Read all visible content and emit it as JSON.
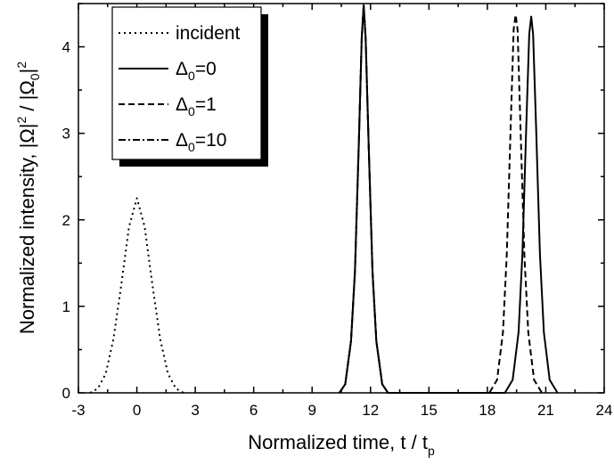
{
  "chart_data": {
    "type": "line",
    "xlabel": "Normalized time, t / t",
    "xlabel_sub": "p",
    "ylabel": "Normalized intensity, |Ω|",
    "ylabel_parts": [
      "Normalized intensity, |Ω|",
      "2",
      " / |Ω",
      "0",
      "|",
      "2"
    ],
    "xlim": [
      -3,
      24
    ],
    "ylim": [
      0,
      4.5
    ],
    "xticks": [
      -3,
      0,
      3,
      6,
      9,
      12,
      15,
      18,
      21,
      24
    ],
    "yticks": [
      0,
      1,
      2,
      3,
      4
    ],
    "grid": false,
    "legend_position": "top-left",
    "series": [
      {
        "name": "incident",
        "label_parts": [
          "incident"
        ],
        "style": "dotted",
        "x": [
          -2.4,
          -2.0,
          -1.6,
          -1.2,
          -0.8,
          -0.4,
          0,
          0.4,
          0.8,
          1.2,
          1.6,
          2.0,
          2.4
        ],
        "y": [
          0.0,
          0.05,
          0.22,
          0.62,
          1.25,
          1.92,
          2.25,
          1.92,
          1.25,
          0.62,
          0.22,
          0.05,
          0.0
        ]
      },
      {
        "name": "Δ0=0",
        "label_parts": [
          "Δ",
          "0",
          "=0"
        ],
        "style": "solid",
        "x": [
          10.4,
          10.7,
          11.0,
          11.2,
          11.4,
          11.55,
          11.65,
          11.75,
          11.9,
          12.1,
          12.3,
          12.6,
          12.9,
          18.9,
          19.3,
          19.6,
          19.8,
          20.0,
          20.15,
          20.25,
          20.35,
          20.5,
          20.7,
          20.9,
          21.2,
          21.6
        ],
        "y": [
          0.0,
          0.1,
          0.6,
          1.4,
          2.9,
          4.1,
          4.48,
          4.1,
          2.9,
          1.4,
          0.6,
          0.1,
          0.0,
          0.0,
          0.15,
          0.7,
          1.6,
          3.1,
          4.15,
          4.35,
          4.15,
          3.1,
          1.6,
          0.7,
          0.15,
          0.0
        ]
      },
      {
        "name": "Δ0=1",
        "label_parts": [
          "Δ",
          "0",
          "=1"
        ],
        "style": "dashed",
        "x": [
          10.4,
          10.7,
          11.0,
          11.2,
          11.4,
          11.55,
          11.65,
          11.75,
          11.9,
          12.1,
          12.3,
          12.6,
          12.9,
          18.1,
          18.5,
          18.8,
          19.0,
          19.2,
          19.35,
          19.45,
          19.55,
          19.7,
          19.9,
          20.1,
          20.4,
          20.8
        ],
        "y": [
          0.0,
          0.1,
          0.6,
          1.4,
          2.9,
          4.1,
          4.48,
          4.1,
          2.9,
          1.4,
          0.6,
          0.1,
          0.0,
          0.0,
          0.15,
          0.7,
          1.6,
          3.1,
          4.2,
          4.37,
          4.2,
          3.1,
          1.6,
          0.7,
          0.15,
          0.0
        ]
      },
      {
        "name": "Δ0=10",
        "label_parts": [
          "Δ",
          "0",
          "=10"
        ],
        "style": "dashdot",
        "x": [
          10.4,
          10.7,
          11.0,
          11.2,
          11.4,
          11.55,
          11.65,
          11.75,
          11.9,
          12.1,
          12.3,
          12.6,
          12.9
        ],
        "y": [
          0.0,
          0.1,
          0.6,
          1.4,
          2.9,
          4.1,
          4.48,
          4.1,
          2.9,
          1.4,
          0.6,
          0.1,
          0.0
        ]
      }
    ]
  }
}
